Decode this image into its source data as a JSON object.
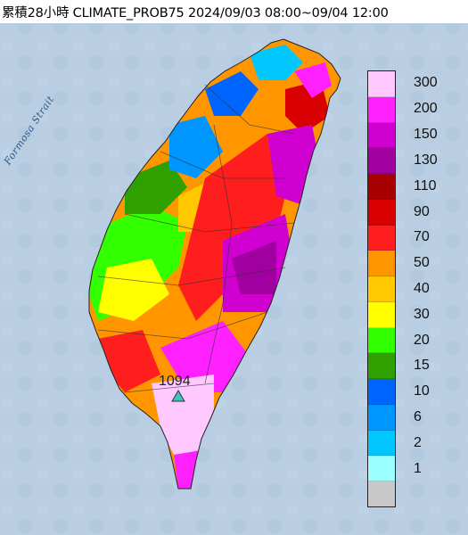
{
  "title": "累積28小時 CLIMATE_PROB75 2024/09/03 08:00~09/04 12:00",
  "sea_label": "Formosa Strait",
  "peak": {
    "value": "1094",
    "marker": "triangle-marker"
  },
  "legend": {
    "items": [
      {
        "label": "300",
        "color": "#ffc8ff"
      },
      {
        "label": "200",
        "color": "#ff20ff"
      },
      {
        "label": "150",
        "color": "#d000d0"
      },
      {
        "label": "130",
        "color": "#a000a0"
      },
      {
        "label": "110",
        "color": "#a80000"
      },
      {
        "label": "90",
        "color": "#d80000"
      },
      {
        "label": "70",
        "color": "#ff1e1e"
      },
      {
        "label": "50",
        "color": "#ff9600"
      },
      {
        "label": "40",
        "color": "#ffc800"
      },
      {
        "label": "30",
        "color": "#ffff00"
      },
      {
        "label": "20",
        "color": "#32ff00"
      },
      {
        "label": "15",
        "color": "#30a000"
      },
      {
        "label": "10",
        "color": "#0064ff"
      },
      {
        "label": "6",
        "color": "#0096ff"
      },
      {
        "label": "2",
        "color": "#00c8ff"
      },
      {
        "label": "1",
        "color": "#9cffff"
      },
      {
        "label": "",
        "color": "#c8c8c8"
      }
    ]
  }
}
